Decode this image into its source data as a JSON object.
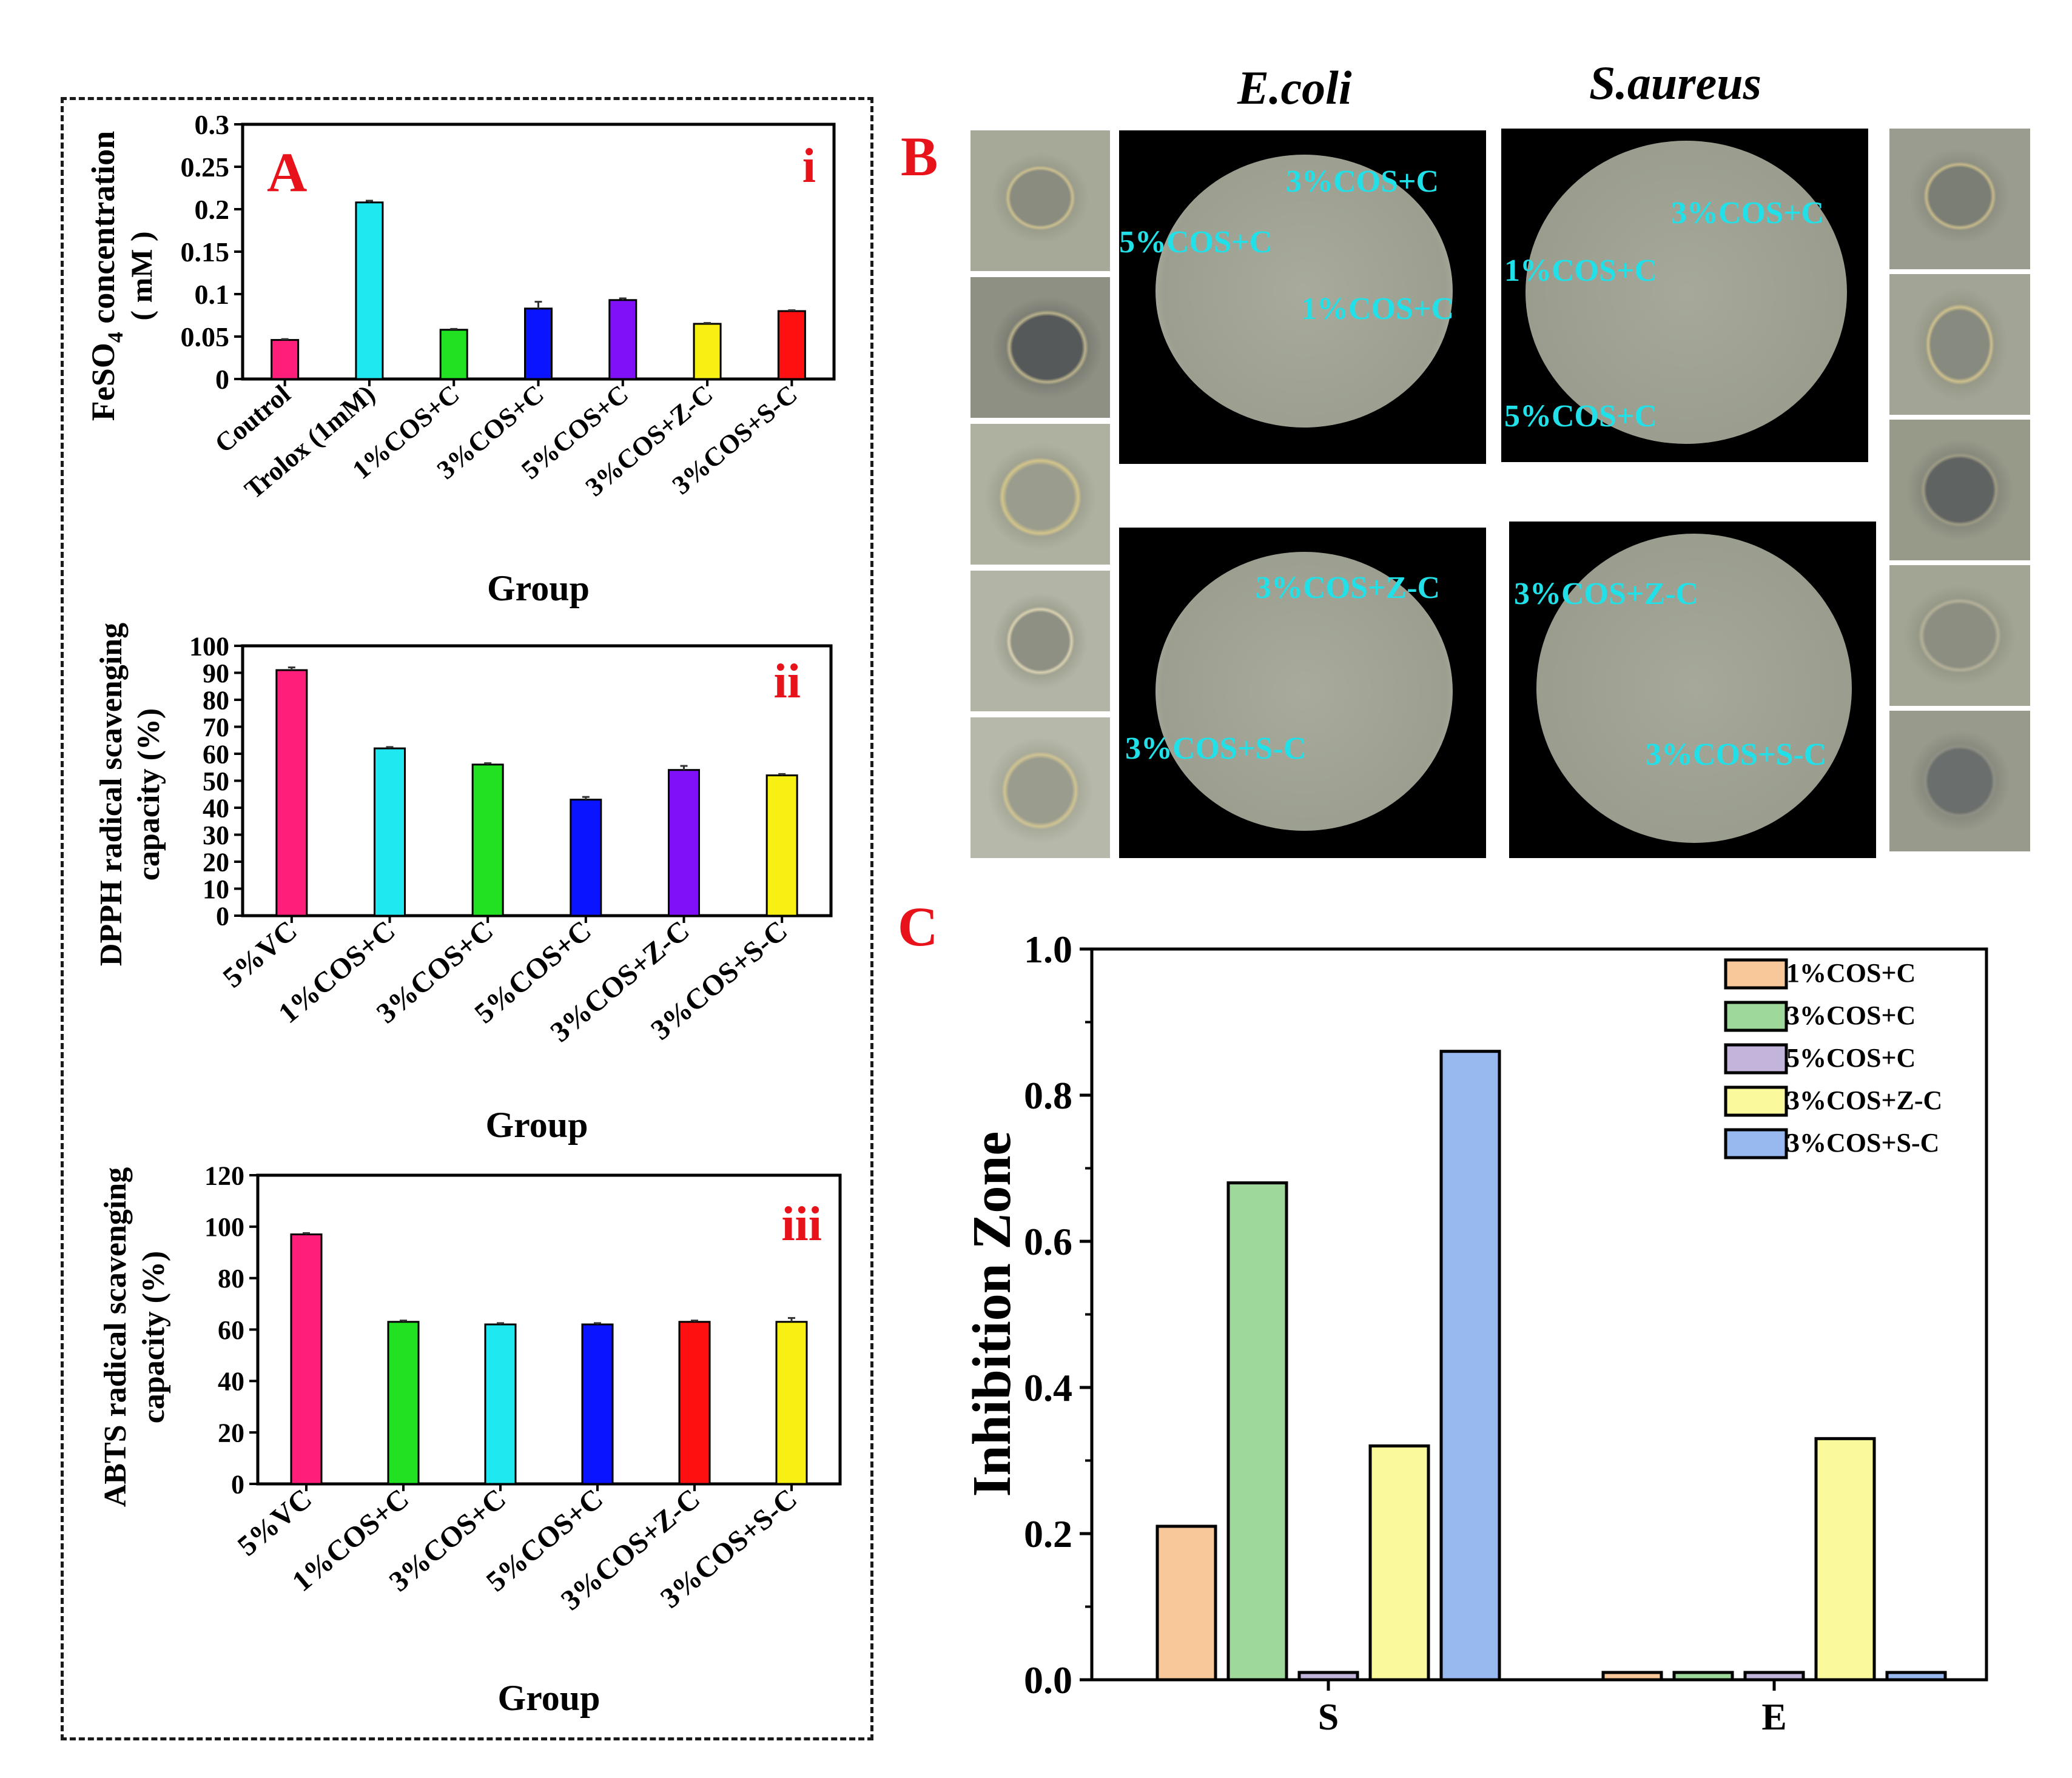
{
  "panel_labels": {
    "A": "A",
    "B": "B",
    "C": "C"
  },
  "chart_data": [
    {
      "id": "A-i",
      "type": "bar",
      "panel_tag": "i",
      "title": "",
      "xlabel": "Group",
      "ylabel": "FeSO4 concentration (mM)",
      "ylabel_main": "FeSO",
      "ylabel_sub": "4",
      "ylabel_rest": " concentration",
      "ylabel_unit": "( mM )",
      "categories": [
        "Coutrol",
        "Trolox (1mM)",
        "1%COS+C",
        "3%COS+C",
        "5%COS+C",
        "3%COS+Z-C",
        "3%COS+S-C"
      ],
      "values": [
        0.046,
        0.208,
        0.058,
        0.083,
        0.093,
        0.065,
        0.08
      ],
      "errors": [
        0.001,
        0.002,
        0.001,
        0.008,
        0.002,
        0.001,
        0.001
      ],
      "colors": [
        "#ff1f7a",
        "#1fe8f0",
        "#22e022",
        "#0a14ff",
        "#8010f8",
        "#f8f012",
        "#ff1010"
      ],
      "ylim": [
        0,
        0.3
      ],
      "yticks": [
        "0",
        "0.05",
        "0.1",
        "0.15",
        "0.2",
        "0.25",
        "0.3"
      ]
    },
    {
      "id": "A-ii",
      "type": "bar",
      "panel_tag": "ii",
      "title": "",
      "xlabel": "Group",
      "ylabel": "DPPH radical scavenging capacity (%)",
      "ylabel_line1": "DPPH radical scavenging",
      "ylabel_line2": "capacity (%)",
      "categories": [
        "5%VC",
        "1%COS+C",
        "3%COS+C",
        "5%COS+C",
        "3%COS+Z-C",
        "3%COS+S-C"
      ],
      "values": [
        91,
        62,
        56,
        43,
        54,
        52
      ],
      "errors": [
        1,
        0.5,
        0.5,
        1,
        1.5,
        0.5
      ],
      "colors": [
        "#ff1f7a",
        "#1fe8f0",
        "#22e022",
        "#0a14ff",
        "#8010f8",
        "#f8f012"
      ],
      "ylim": [
        0,
        100
      ],
      "yticks": [
        "0",
        "10",
        "20",
        "30",
        "40",
        "50",
        "60",
        "70",
        "80",
        "90",
        "100"
      ]
    },
    {
      "id": "A-iii",
      "type": "bar",
      "panel_tag": "iii",
      "title": "",
      "xlabel": "Group",
      "ylabel": "ABTS radical scavenging capacity (%)",
      "ylabel_line1": "ABTS radical scavenging",
      "ylabel_line2": "capacity (%)",
      "categories": [
        "5%VC",
        "1%COS+C",
        "3%COS+C",
        "5%COS+C",
        "3%COS+Z-C",
        "3%COS+S-C"
      ],
      "values": [
        97,
        63,
        62,
        62,
        63,
        63
      ],
      "errors": [
        0.5,
        0.5,
        0.5,
        0.5,
        0.5,
        1.5
      ],
      "colors": [
        "#ff1f7a",
        "#22e022",
        "#1fe8f0",
        "#0a14ff",
        "#ff1010",
        "#f8f012"
      ],
      "ylim": [
        0,
        120
      ],
      "yticks": [
        "0",
        "20",
        "40",
        "60",
        "80",
        "100",
        "120"
      ]
    },
    {
      "id": "C",
      "type": "bar",
      "title": "",
      "xlabel": "",
      "ylabel": "Inhibition Zone",
      "categories": [
        "S",
        "E"
      ],
      "series": [
        {
          "name": "1%COS+C",
          "color": "#f8c89a",
          "values": [
            0.21,
            0.01
          ]
        },
        {
          "name": "3%COS+C",
          "color": "#9ed89a",
          "values": [
            0.68,
            0.01
          ]
        },
        {
          "name": "5%COS+C",
          "color": "#c2b4da",
          "values": [
            0.01,
            0.01
          ]
        },
        {
          "name": "3%COS+Z-C",
          "color": "#fafa9c",
          "values": [
            0.32,
            0.33
          ]
        },
        {
          "name": "3%COS+S-C",
          "color": "#98b8f0",
          "values": [
            0.86,
            0.01
          ]
        }
      ],
      "ylim": [
        0,
        1.0
      ],
      "yticks": [
        "0.0",
        "0.2",
        "0.4",
        "0.6",
        "0.8",
        "1.0"
      ],
      "legend_position": "top-right"
    }
  ],
  "panel_b": {
    "column_titles": [
      "E.coli",
      "S.aureus"
    ],
    "ecoli_top_labels": [
      "3%COS+C",
      "5%COS+C",
      "1%COS+C"
    ],
    "saureus_top_labels": [
      "3%COS+C",
      "1%COS+C",
      "5%COS+C"
    ],
    "ecoli_bottom_labels": [
      "3%COS+Z-C",
      "3%COS+S-C"
    ],
    "saureus_bottom_labels": [
      "3%COS+Z-C",
      "3%COS+S-C"
    ]
  },
  "colors": {
    "panel_letter": "#e8121b",
    "plate_label": "#22e0e8",
    "axis": "#000000"
  }
}
